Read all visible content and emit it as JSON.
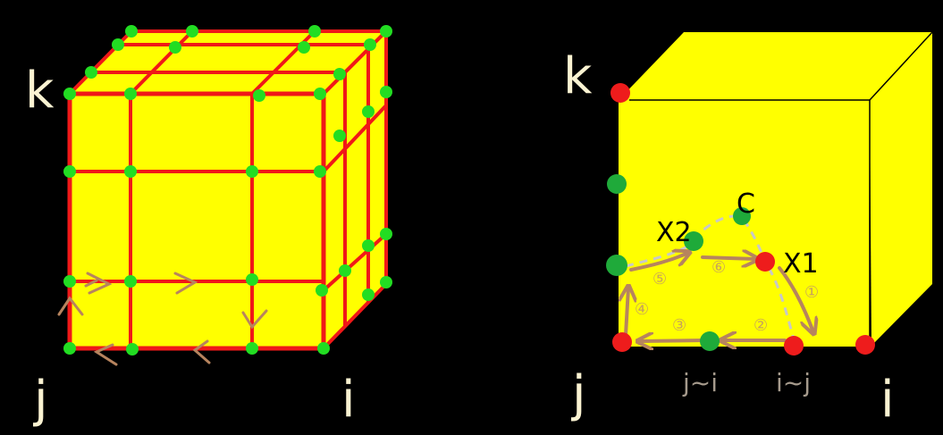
{
  "colors": {
    "background": "#000000",
    "face": "#ffff00",
    "grid_line": "#f01818",
    "grid_point": "#22dd22",
    "label": "#fbf3d2",
    "path_arrow": "#b7845e",
    "dashed_path": "#c8c8c8"
  },
  "left_cube": {
    "label_k": "k",
    "label_j": "j",
    "label_i": "i"
  },
  "right_cube": {
    "label_k": "k",
    "label_j": "j",
    "label_i": "i",
    "node_c": "C",
    "node_x1": "X1",
    "node_x2": "X2",
    "edge_j_i": "j~i",
    "edge_i_j": "i~j",
    "steps": [
      "①",
      "②",
      "③",
      "④",
      "⑤",
      "⑥"
    ]
  }
}
